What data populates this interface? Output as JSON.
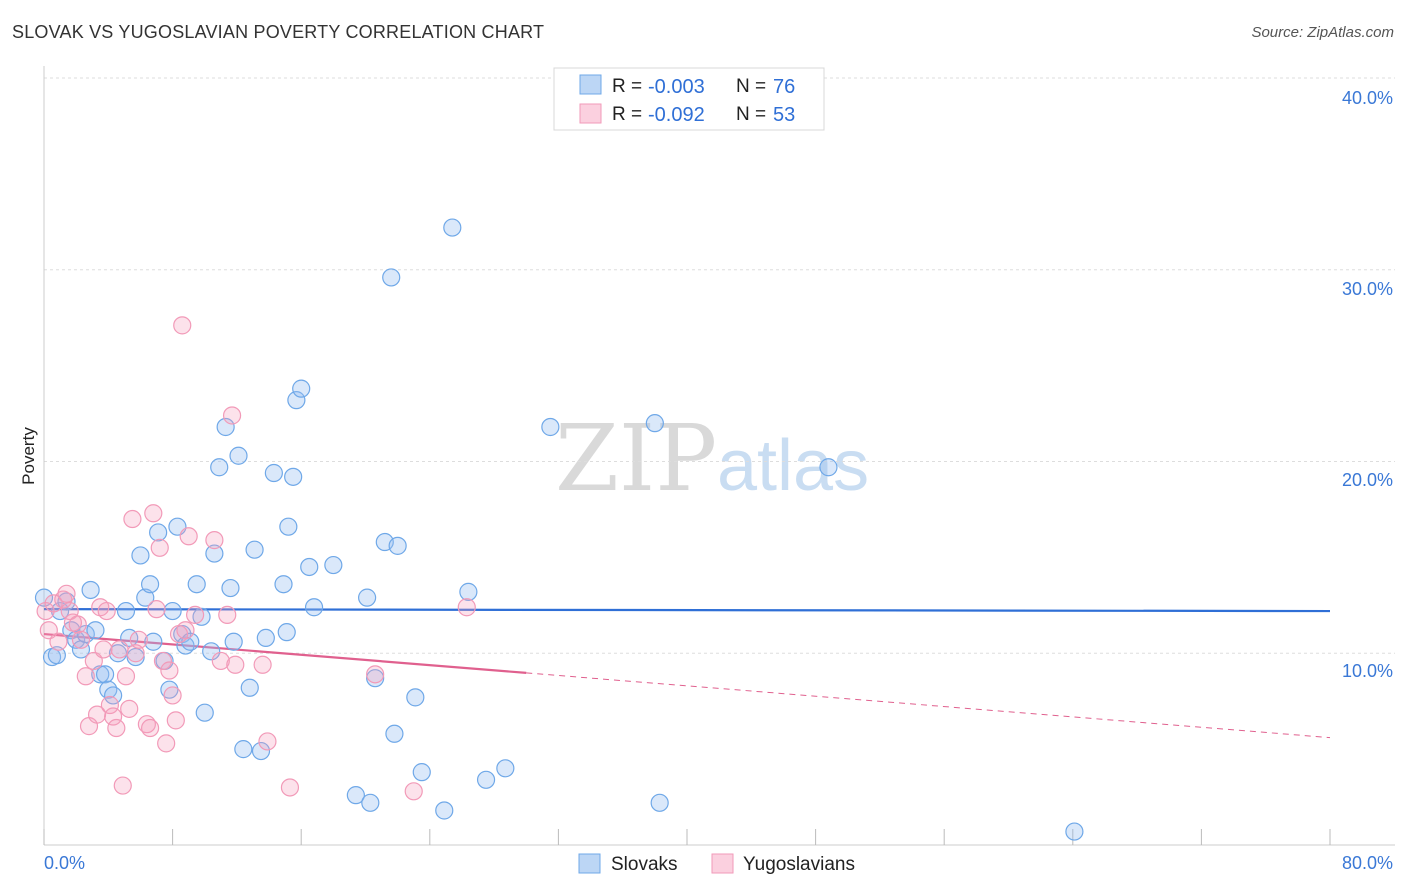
{
  "title": "SLOVAK VS YUGOSLAVIAN POVERTY CORRELATION CHART",
  "source": "Source: ZipAtlas.com",
  "watermark": {
    "zip": "ZIP",
    "atlas": "atlas"
  },
  "legend": [
    {
      "r_label": "R =",
      "r_value": "-0.003",
      "n_label": "N =",
      "n_value": "76"
    },
    {
      "r_label": "R =",
      "r_value": "-0.092",
      "n_label": "N =",
      "n_value": "53"
    }
  ],
  "chart_data": {
    "type": "scatter",
    "title": "SLOVAK VS YUGOSLAVIAN POVERTY CORRELATION CHART",
    "xlabel": "",
    "ylabel": "Poverty",
    "xlim": [
      0,
      80
    ],
    "ylim": [
      0,
      40
    ],
    "x_tick_labels": [
      "0.0%",
      "80.0%"
    ],
    "y_ticks": [
      10,
      20,
      30,
      40
    ],
    "y_tick_labels": [
      "10.0%",
      "20.0%",
      "30.0%",
      "40.0%"
    ],
    "x_minor_ticks": [
      0,
      8,
      16,
      24,
      32,
      40,
      48,
      56,
      64,
      72,
      80
    ],
    "grid": true,
    "series": [
      {
        "name": "Slovaks",
        "color": "#6fa8e8",
        "line_color": "#2f6fd6",
        "trend": {
          "x0": 0,
          "y0": 12.3,
          "x1": 80,
          "y1": 12.2,
          "solid_until": 80
        },
        "points": [
          [
            0.0,
            12.9
          ],
          [
            0.5,
            9.8
          ],
          [
            0.8,
            9.9
          ],
          [
            1.0,
            12.2
          ],
          [
            1.4,
            12.7
          ],
          [
            1.7,
            11.2
          ],
          [
            2.0,
            10.7
          ],
          [
            2.3,
            10.2
          ],
          [
            2.6,
            11.0
          ],
          [
            2.9,
            13.3
          ],
          [
            3.2,
            11.2
          ],
          [
            3.5,
            8.9
          ],
          [
            3.8,
            8.9
          ],
          [
            4.0,
            8.1
          ],
          [
            4.3,
            7.8
          ],
          [
            4.6,
            10.0
          ],
          [
            5.1,
            12.2
          ],
          [
            5.3,
            10.8
          ],
          [
            5.7,
            9.8
          ],
          [
            6.0,
            15.1
          ],
          [
            6.3,
            12.9
          ],
          [
            6.6,
            13.6
          ],
          [
            6.8,
            10.6
          ],
          [
            7.1,
            16.3
          ],
          [
            7.5,
            9.6
          ],
          [
            7.8,
            8.1
          ],
          [
            8.0,
            12.2
          ],
          [
            8.3,
            16.6
          ],
          [
            8.6,
            11.0
          ],
          [
            8.8,
            10.4
          ],
          [
            9.1,
            10.6
          ],
          [
            9.5,
            13.6
          ],
          [
            9.8,
            11.9
          ],
          [
            10.0,
            6.9
          ],
          [
            10.4,
            10.1
          ],
          [
            10.6,
            15.2
          ],
          [
            10.9,
            19.7
          ],
          [
            11.3,
            21.8
          ],
          [
            11.6,
            13.4
          ],
          [
            11.8,
            10.6
          ],
          [
            12.1,
            20.3
          ],
          [
            12.4,
            5.0
          ],
          [
            12.8,
            8.2
          ],
          [
            13.1,
            15.4
          ],
          [
            13.5,
            4.9
          ],
          [
            13.8,
            10.8
          ],
          [
            14.3,
            19.4
          ],
          [
            14.9,
            13.6
          ],
          [
            15.1,
            11.1
          ],
          [
            15.2,
            16.6
          ],
          [
            15.5,
            19.2
          ],
          [
            15.7,
            23.2
          ],
          [
            16.0,
            23.8
          ],
          [
            16.5,
            14.5
          ],
          [
            16.8,
            12.4
          ],
          [
            18.0,
            14.6
          ],
          [
            19.4,
            2.6
          ],
          [
            20.1,
            12.9
          ],
          [
            20.3,
            2.2
          ],
          [
            20.6,
            8.7
          ],
          [
            21.2,
            15.8
          ],
          [
            21.6,
            29.6
          ],
          [
            21.8,
            5.8
          ],
          [
            22.0,
            15.6
          ],
          [
            23.1,
            7.7
          ],
          [
            23.5,
            3.8
          ],
          [
            24.9,
            1.8
          ],
          [
            25.4,
            32.2
          ],
          [
            26.4,
            13.2
          ],
          [
            27.5,
            3.4
          ],
          [
            28.7,
            4.0
          ],
          [
            31.5,
            21.8
          ],
          [
            38.0,
            22.0
          ],
          [
            38.3,
            2.2
          ],
          [
            48.8,
            19.7
          ],
          [
            64.1,
            0.7
          ]
        ]
      },
      {
        "name": "Yugoslavians",
        "color": "#f29ab8",
        "line_color": "#e0608e",
        "trend": {
          "x0": 0,
          "y0": 11.0,
          "x1": 80,
          "y1": 5.6,
          "solid_until": 30
        },
        "points": [
          [
            0.1,
            12.2
          ],
          [
            0.3,
            11.2
          ],
          [
            0.6,
            12.6
          ],
          [
            0.9,
            10.6
          ],
          [
            1.2,
            12.8
          ],
          [
            1.4,
            13.1
          ],
          [
            1.6,
            12.2
          ],
          [
            1.8,
            11.6
          ],
          [
            2.1,
            11.5
          ],
          [
            2.3,
            10.7
          ],
          [
            2.6,
            8.8
          ],
          [
            2.8,
            6.2
          ],
          [
            3.1,
            9.6
          ],
          [
            3.3,
            6.8
          ],
          [
            3.5,
            12.4
          ],
          [
            3.7,
            10.2
          ],
          [
            3.9,
            12.2
          ],
          [
            4.1,
            7.3
          ],
          [
            4.3,
            6.7
          ],
          [
            4.5,
            6.1
          ],
          [
            4.7,
            10.2
          ],
          [
            4.9,
            3.1
          ],
          [
            5.1,
            8.8
          ],
          [
            5.3,
            7.1
          ],
          [
            5.5,
            17.0
          ],
          [
            5.7,
            10.0
          ],
          [
            5.9,
            10.7
          ],
          [
            6.4,
            6.3
          ],
          [
            6.6,
            6.1
          ],
          [
            6.8,
            17.3
          ],
          [
            7.0,
            12.3
          ],
          [
            7.2,
            15.5
          ],
          [
            7.4,
            9.6
          ],
          [
            7.6,
            5.3
          ],
          [
            7.8,
            9.1
          ],
          [
            8.0,
            7.8
          ],
          [
            8.2,
            6.5
          ],
          [
            8.4,
            11.0
          ],
          [
            8.6,
            27.1
          ],
          [
            8.8,
            11.2
          ],
          [
            9.0,
            16.1
          ],
          [
            9.4,
            12.0
          ],
          [
            10.6,
            15.9
          ],
          [
            11.0,
            9.6
          ],
          [
            11.4,
            12.0
          ],
          [
            11.7,
            22.4
          ],
          [
            11.9,
            9.4
          ],
          [
            13.6,
            9.4
          ],
          [
            13.9,
            5.4
          ],
          [
            15.3,
            3.0
          ],
          [
            20.6,
            8.9
          ],
          [
            23.0,
            2.8
          ],
          [
            26.3,
            12.4
          ]
        ]
      }
    ]
  }
}
